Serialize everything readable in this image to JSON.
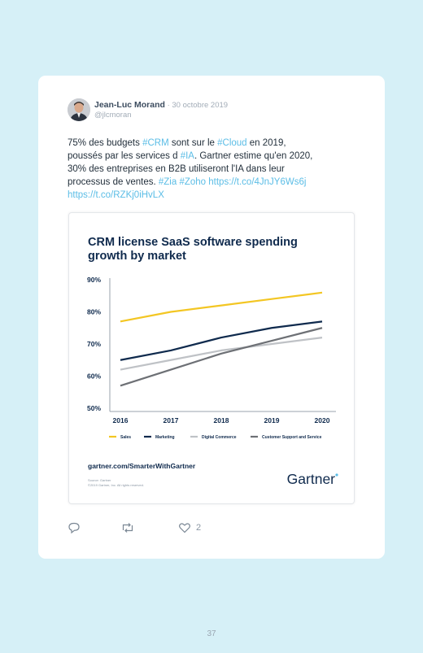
{
  "post": {
    "author_name": "Jean-Luc Morand",
    "date": " · 30 octobre 2019",
    "handle": "@jlcmoran",
    "text": [
      [
        {
          "t": "75% des budgets "
        },
        {
          "t": "#CRM",
          "link": true
        },
        {
          "t": " sont sur le "
        },
        {
          "t": "#Cloud",
          "link": true
        },
        {
          "t": " en 2019,"
        }
      ],
      [
        {
          "t": "poussés par les services d "
        },
        {
          "t": "#IA",
          "link": true
        },
        {
          "t": ". Gartner estime qu'en 2020,"
        }
      ],
      [
        {
          "t": "30% des entreprises en B2B utiliseront l'IA dans leur"
        }
      ],
      [
        {
          "t": "processus de ventes. "
        },
        {
          "t": "#Zia",
          "link": true
        },
        {
          "t": " "
        },
        {
          "t": "#Zoho",
          "link": true
        },
        {
          "t": " "
        },
        {
          "t": "https://t.co/4JnJY6Ws6j",
          "link": true
        }
      ],
      [
        {
          "t": "https://t.co/RZKj0iHvLX",
          "link": true
        }
      ]
    ],
    "like_count": "2"
  },
  "embed": {
    "footer_url": "gartner.com/SmarterWithGartner",
    "source_line": "Source: Gartner",
    "copyright_line": "©2019 Gartner, Inc. All rights reserved.",
    "brand": "Gartner"
  },
  "colors": {
    "sales": "#f3c623",
    "marketing": "#0f2a4d",
    "digital_commerce": "#bfc2c6",
    "customer_support": "#6d7075",
    "accent": "#5bbde6"
  },
  "page_number": "37",
  "chart_data": {
    "type": "line",
    "title": "CRM license SaaS software spending growth by market",
    "categories": [
      "2016",
      "2017",
      "2018",
      "2019",
      "2020"
    ],
    "y_ticks": [
      "90%",
      "80%",
      "70%",
      "60%",
      "50%"
    ],
    "ylim": [
      50,
      90
    ],
    "grid": false,
    "legend_position": "bottom",
    "series": [
      {
        "name": "Sales",
        "color": "#f3c623",
        "values": [
          77,
          80,
          82,
          84,
          86
        ]
      },
      {
        "name": "Marketing",
        "color": "#0f2a4d",
        "values": [
          65,
          68,
          72,
          75,
          77
        ]
      },
      {
        "name": "Digital Commerce",
        "color": "#bfc2c6",
        "values": [
          62,
          65,
          68,
          70,
          72
        ]
      },
      {
        "name": "Customer Support and Service",
        "color": "#6d7075",
        "values": [
          57,
          62,
          67,
          71,
          75
        ]
      }
    ]
  }
}
